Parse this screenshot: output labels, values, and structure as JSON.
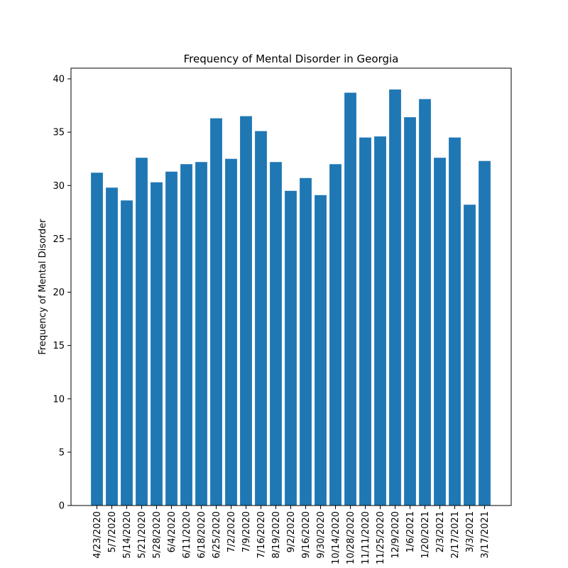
{
  "chart_data": {
    "type": "bar",
    "title": "Frequency of Mental Disorder in Georgia",
    "xlabel": "",
    "ylabel": "Frequency of Mental Disorder",
    "ylim": [
      0,
      41
    ],
    "yticks": [
      0,
      5,
      10,
      15,
      20,
      25,
      30,
      35,
      40
    ],
    "grid": false,
    "bar_color": "#1f77b4",
    "categories": [
      "4/23/2020",
      "5/7/2020",
      "5/14/2020",
      "5/21/2020",
      "5/28/2020",
      "6/4/2020",
      "6/11/2020",
      "6/18/2020",
      "6/25/2020",
      "7/2/2020",
      "7/9/2020",
      "7/16/2020",
      "8/19/2020",
      "9/2/2020",
      "9/16/2020",
      "9/30/2020",
      "10/14/2020",
      "10/28/2020",
      "11/11/2020",
      "11/25/2020",
      "12/9/2020",
      "1/6/2021",
      "1/20/2021",
      "2/3/2021",
      "2/17/2021",
      "3/3/2021",
      "3/17/2021"
    ],
    "values": [
      31.2,
      29.8,
      28.6,
      32.6,
      30.3,
      31.3,
      32.0,
      32.2,
      36.3,
      32.5,
      36.5,
      35.1,
      32.2,
      29.5,
      30.7,
      29.1,
      32.0,
      38.7,
      34.5,
      34.6,
      39.0,
      36.4,
      38.1,
      32.6,
      34.5,
      28.2,
      32.3
    ]
  }
}
